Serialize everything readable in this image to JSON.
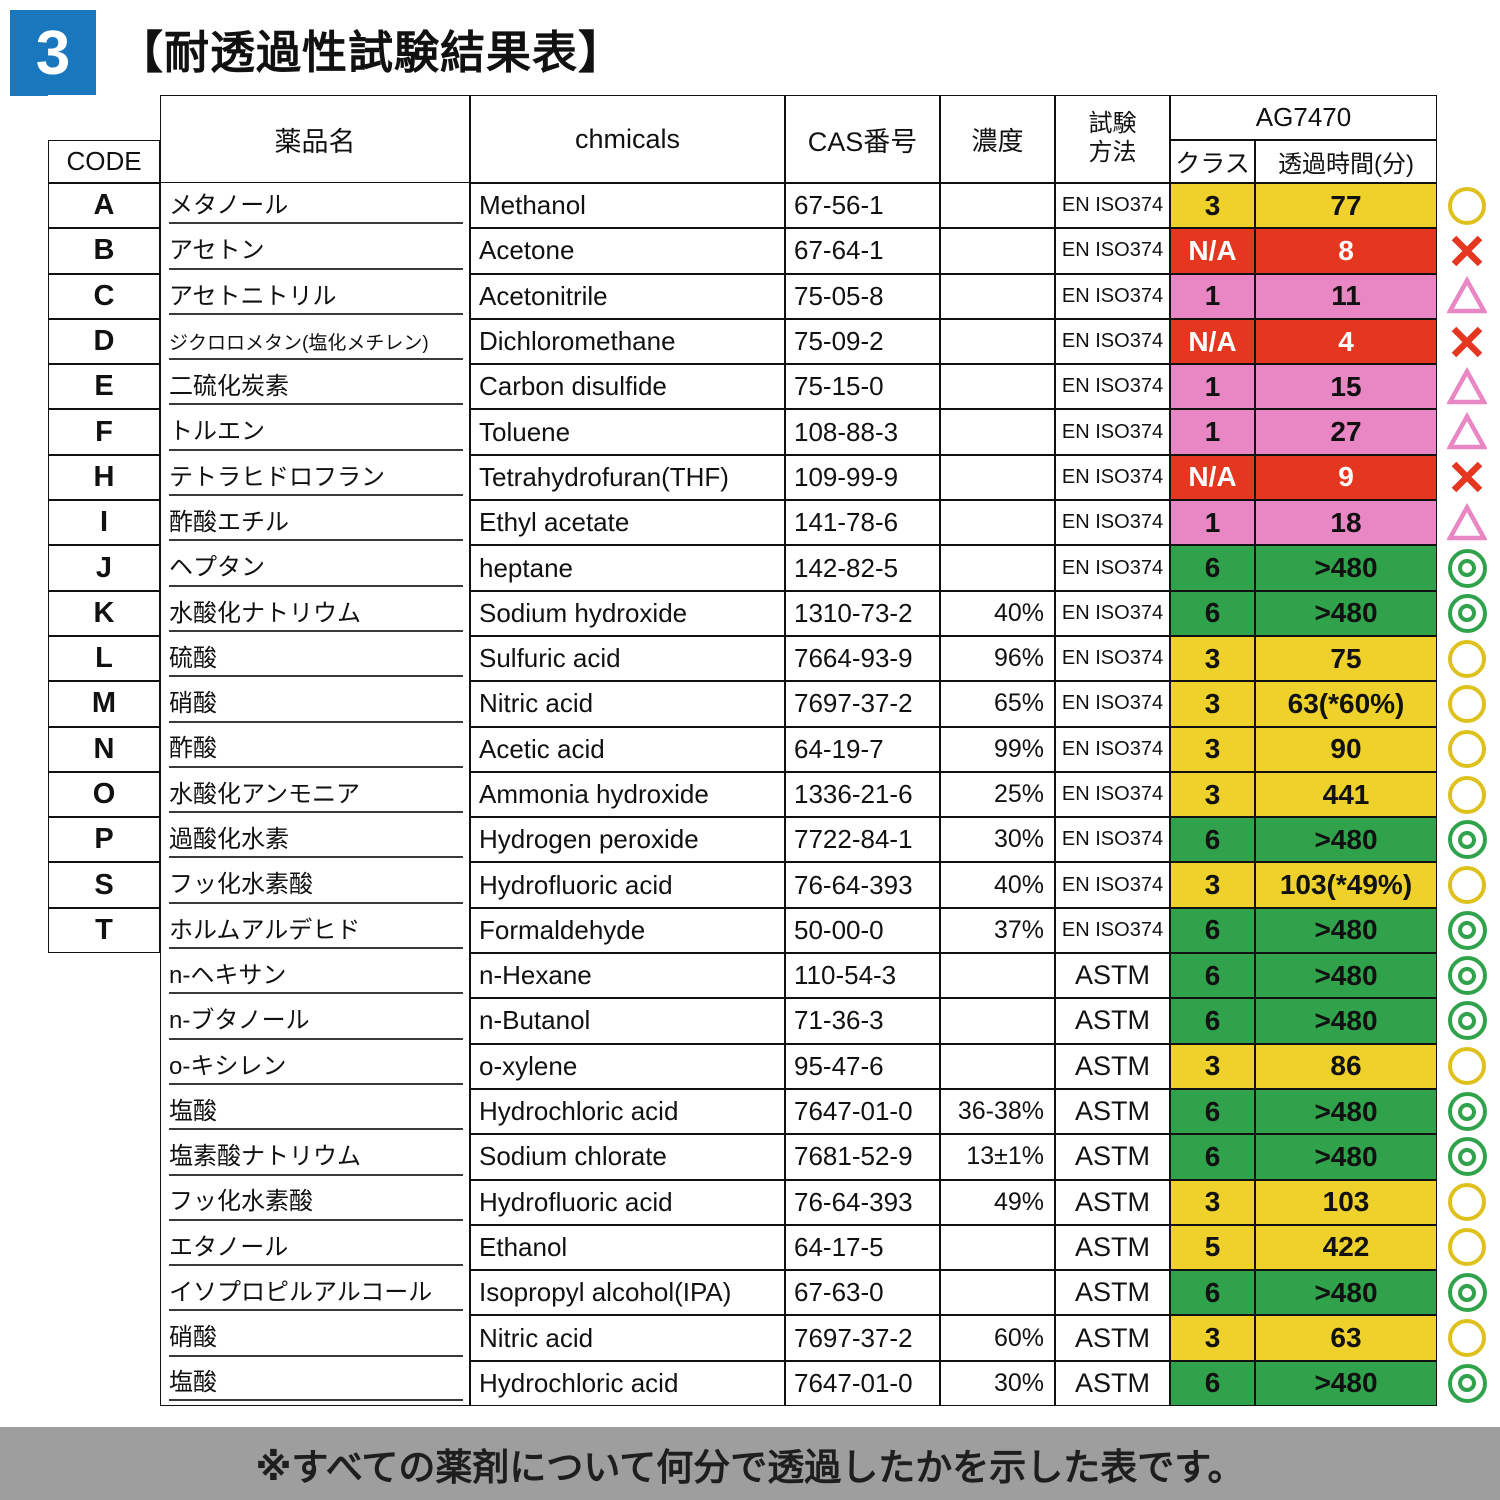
{
  "page": {
    "badge_number": "3",
    "title": "【耐透過性試験結果表】",
    "footer_note": "※すべての薬剤について何分で透過したかを示した表です。"
  },
  "colors": {
    "yellow": "#eed22b",
    "yellow_ring": "#dfc11d",
    "red": "#e5371f",
    "pink": "#e887c3",
    "green": "#2fa24b",
    "badge_blue": "#1877bd",
    "footer_gray": "#9e9e9e"
  },
  "table": {
    "headers": {
      "code": "CODE",
      "name_ja": "薬品名",
      "name_en": "chmicals",
      "cas": "CAS番号",
      "concentration": "濃度",
      "method": "試験\n方法",
      "product": "AG7470",
      "class": "クラス",
      "time": "透過時間(分)"
    },
    "rows": [
      {
        "code": "A",
        "name_ja": "メタノール",
        "name_en": "Methanol",
        "cas": "67-56-1",
        "conc": "",
        "method": "EN ISO374",
        "class": "3",
        "time": "77",
        "color": "yellow",
        "mark": "circle"
      },
      {
        "code": "B",
        "name_ja": "アセトン",
        "name_en": "Acetone",
        "cas": "67-64-1",
        "conc": "",
        "method": "EN ISO374",
        "class": "N/A",
        "time": "8",
        "color": "red",
        "mark": "x"
      },
      {
        "code": "C",
        "name_ja": "アセトニトリル",
        "name_en": "Acetonitrile",
        "cas": "75-05-8",
        "conc": "",
        "method": "EN ISO374",
        "class": "1",
        "time": "11",
        "color": "pink",
        "mark": "triangle"
      },
      {
        "code": "D",
        "name_ja": "ジクロロメタン(塩化メチレン)",
        "name_small": true,
        "name_en": "Dichloromethane",
        "cas": "75-09-2",
        "conc": "",
        "method": "EN ISO374",
        "class": "N/A",
        "time": "4",
        "color": "red",
        "mark": "x"
      },
      {
        "code": "E",
        "name_ja": "二硫化炭素",
        "name_en": "Carbon disulfide",
        "cas": "75-15-0",
        "conc": "",
        "method": "EN ISO374",
        "class": "1",
        "time": "15",
        "color": "pink",
        "mark": "triangle"
      },
      {
        "code": "F",
        "name_ja": "トルエン",
        "name_en": "Toluene",
        "cas": "108-88-3",
        "conc": "",
        "method": "EN ISO374",
        "class": "1",
        "time": "27",
        "color": "pink",
        "mark": "triangle"
      },
      {
        "code": "H",
        "name_ja": "テトラヒドロフラン",
        "name_en": "Tetrahydrofuran(THF)",
        "cas": "109-99-9",
        "conc": "",
        "method": "EN ISO374",
        "class": "N/A",
        "time": "9",
        "color": "red",
        "mark": "x"
      },
      {
        "code": "I",
        "name_ja": "酢酸エチル",
        "name_en": "Ethyl acetate",
        "cas": "141-78-6",
        "conc": "",
        "method": "EN ISO374",
        "class": "1",
        "time": "18",
        "color": "pink",
        "mark": "triangle"
      },
      {
        "code": "J",
        "name_ja": "ヘプタン",
        "name_en": "heptane",
        "cas": "142-82-5",
        "conc": "",
        "method": "EN ISO374",
        "class": "6",
        "time": ">480",
        "color": "green",
        "mark": "double"
      },
      {
        "code": "K",
        "name_ja": "水酸化ナトリウム",
        "name_en": "Sodium hydroxide",
        "cas": "1310-73-2",
        "conc": "40%",
        "method": "EN ISO374",
        "class": "6",
        "time": ">480",
        "color": "green",
        "mark": "double"
      },
      {
        "code": "L",
        "name_ja": "硫酸",
        "name_en": "Sulfuric acid",
        "cas": "7664-93-9",
        "conc": "96%",
        "method": "EN ISO374",
        "class": "3",
        "time": "75",
        "color": "yellow",
        "mark": "circle"
      },
      {
        "code": "M",
        "name_ja": "硝酸",
        "name_en": "Nitric acid",
        "cas": "7697-37-2",
        "conc": "65%",
        "method": "EN ISO374",
        "class": "3",
        "time": "63(*60%)",
        "color": "yellow",
        "mark": "circle"
      },
      {
        "code": "N",
        "name_ja": "酢酸",
        "name_en": "Acetic acid",
        "cas": "64-19-7",
        "conc": "99%",
        "method": "EN ISO374",
        "class": "3",
        "time": "90",
        "color": "yellow",
        "mark": "circle"
      },
      {
        "code": "O",
        "name_ja": "水酸化アンモニア",
        "name_en": "Ammonia hydroxide",
        "cas": "1336-21-6",
        "conc": "25%",
        "method": "EN ISO374",
        "class": "3",
        "time": "441",
        "color": "yellow",
        "mark": "circle"
      },
      {
        "code": "P",
        "name_ja": "過酸化水素",
        "name_en": "Hydrogen peroxide",
        "cas": "7722-84-1",
        "conc": "30%",
        "method": "EN ISO374",
        "class": "6",
        "time": ">480",
        "color": "green",
        "mark": "double"
      },
      {
        "code": "S",
        "name_ja": "フッ化水素酸",
        "name_en": "Hydrofluoric acid",
        "cas": "76-64-393",
        "conc": "40%",
        "method": "EN ISO374",
        "class": "3",
        "time": "103(*49%)",
        "color": "yellow",
        "mark": "circle"
      },
      {
        "code": "T",
        "name_ja": "ホルムアルデヒド",
        "name_en": "Formaldehyde",
        "cas": "50-00-0",
        "conc": "37%",
        "method": "EN ISO374",
        "class": "6",
        "time": ">480",
        "color": "green",
        "mark": "double"
      },
      {
        "code": "",
        "name_ja": "n-ヘキサン",
        "name_en": "n-Hexane",
        "cas": "110-54-3",
        "conc": "",
        "method": "ASTM",
        "class": "6",
        "time": ">480",
        "color": "green",
        "mark": "double"
      },
      {
        "code": "",
        "name_ja": "n-ブタノール",
        "name_en": "n-Butanol",
        "cas": "71-36-3",
        "conc": "",
        "method": "ASTM",
        "class": "6",
        "time": ">480",
        "color": "green",
        "mark": "double"
      },
      {
        "code": "",
        "name_ja": "o-キシレン",
        "name_en": "o-xylene",
        "cas": "95-47-6",
        "conc": "",
        "method": "ASTM",
        "class": "3",
        "time": "86",
        "color": "yellow",
        "mark": "circle"
      },
      {
        "code": "",
        "name_ja": "塩酸",
        "name_en": "Hydrochloric acid",
        "cas": "7647-01-0",
        "conc": "36-38%",
        "method": "ASTM",
        "class": "6",
        "time": ">480",
        "color": "green",
        "mark": "double"
      },
      {
        "code": "",
        "name_ja": "塩素酸ナトリウム",
        "name_en": "Sodium chlorate",
        "cas": "7681-52-9",
        "conc": "13±1%",
        "method": "ASTM",
        "class": "6",
        "time": ">480",
        "color": "green",
        "mark": "double"
      },
      {
        "code": "",
        "name_ja": "フッ化水素酸",
        "name_en": "Hydrofluoric acid",
        "cas": "76-64-393",
        "conc": "49%",
        "method": "ASTM",
        "class": "3",
        "time": "103",
        "color": "yellow",
        "mark": "circle"
      },
      {
        "code": "",
        "name_ja": "エタノール",
        "name_en": "Ethanol",
        "cas": "64-17-5",
        "conc": "",
        "method": "ASTM",
        "class": "5",
        "time": "422",
        "color": "yellow",
        "mark": "circle"
      },
      {
        "code": "",
        "name_ja": "イソプロピルアルコール",
        "name_en": "Isopropyl alcohol(IPA)",
        "cas": "67-63-0",
        "conc": "",
        "method": "ASTM",
        "class": "6",
        "time": ">480",
        "color": "green",
        "mark": "double"
      },
      {
        "code": "",
        "name_ja": "硝酸",
        "name_en": "Nitric acid",
        "cas": "7697-37-2",
        "conc": "60%",
        "method": "ASTM",
        "class": "3",
        "time": "63",
        "color": "yellow",
        "mark": "circle"
      },
      {
        "code": "",
        "name_ja": "塩酸",
        "name_en": "Hydrochloric acid",
        "cas": "7647-01-0",
        "conc": "30%",
        "method": "ASTM",
        "class": "6",
        "time": ">480",
        "color": "green",
        "mark": "double"
      }
    ]
  }
}
